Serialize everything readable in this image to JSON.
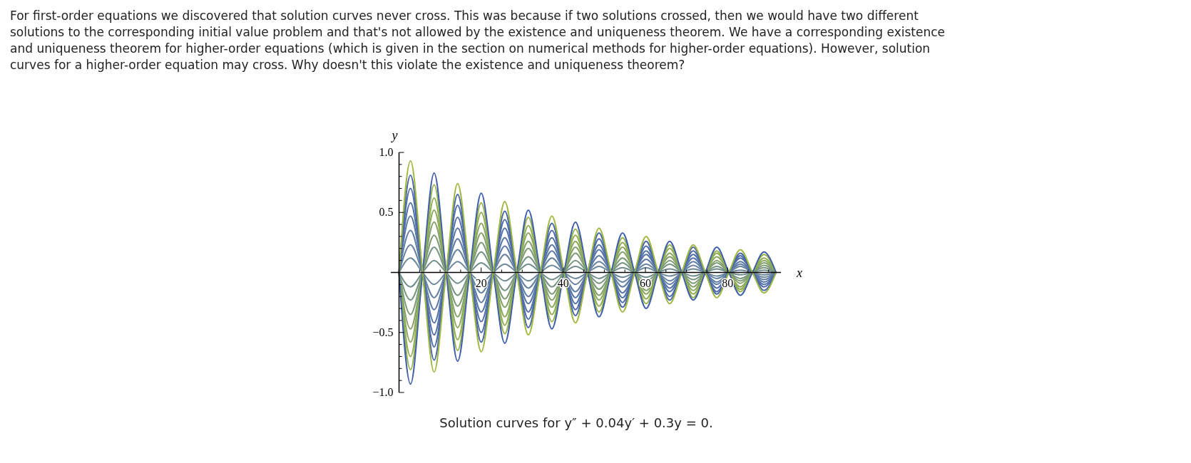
{
  "chart_data": {
    "type": "line",
    "title": "For first-order equations we discovered that solution curves never cross. This was because if two solutions crossed, then we would have two different solutions to the corresponding initial value problem and that's not allowed by the existence and uniqueness theorem. We have a corresponding existence and uniqueness theorem for higher-order equations (which is given in the section on numerical methods for higher-order equations). However, solution curves for a higher-order equation may cross. Why doesn't this violate the existence and uniqueness theorem?",
    "annotations": [
      "Solution curves for y″ + 0.04y′ + 0.3y = 0."
    ],
    "xlabel": "x",
    "ylabel": "y",
    "x": [
      0,
      2.8,
      5.74,
      8.54,
      11.47,
      14.27,
      17.21,
      20.01,
      22.95,
      25.75,
      28.69,
      31.49,
      34.42,
      37.22,
      40.16,
      42.96,
      45.9,
      48.7,
      51.64,
      54.43,
      57.37,
      60.17,
      63.11,
      65.91,
      68.85,
      71.65,
      74.59,
      77.38,
      80.32,
      83.12,
      86.06,
      88.86,
      91.8
    ],
    "xlim": [
      -2,
      93
    ],
    "ylim": [
      -1.0,
      1.0
    ],
    "xticks": [
      {
        "value": 5,
        "label": null
      },
      {
        "value": 10,
        "label": null
      },
      {
        "value": 15,
        "label": null
      },
      20,
      {
        "value": 25,
        "label": null
      },
      {
        "value": 30,
        "label": null
      },
      {
        "value": 35,
        "label": null
      },
      40,
      {
        "value": 45,
        "label": null
      },
      {
        "value": 50,
        "label": null
      },
      {
        "value": 55,
        "label": null
      },
      60,
      {
        "value": 65,
        "label": null
      },
      {
        "value": 70,
        "label": null
      },
      {
        "value": 75,
        "label": null
      },
      80,
      {
        "value": 85,
        "label": null
      },
      {
        "value": 90,
        "label": null
      }
    ],
    "yticks": [
      {
        "value": -1.0,
        "label": "−1.0"
      },
      {
        "value": -0.9,
        "label": null
      },
      {
        "value": -0.8,
        "label": null
      },
      {
        "value": -0.7,
        "label": null
      },
      {
        "value": -0.6,
        "label": null
      },
      {
        "value": -0.5,
        "label": "−0.5"
      },
      {
        "value": -0.4,
        "label": null
      },
      {
        "value": -0.3,
        "label": null
      },
      {
        "value": -0.2,
        "label": null
      },
      {
        "value": -0.1,
        "label": null
      },
      {
        "value": 0.1,
        "label": null
      },
      {
        "value": 0.2,
        "label": null
      },
      {
        "value": 0.3,
        "label": null
      },
      {
        "value": 0.4,
        "label": null
      },
      {
        "value": 0.5,
        "label": "0.5"
      },
      {
        "value": 0.6,
        "label": null
      },
      {
        "value": 0.7,
        "label": null
      },
      {
        "value": 0.8,
        "label": null
      },
      {
        "value": 0.9,
        "label": null
      },
      {
        "value": 1.0,
        "label": "1.0"
      }
    ],
    "grid": false,
    "marker": "none",
    "line_style": "solid",
    "series": [
      {
        "color": "#6b889a",
        "values": [
          0,
          0.12,
          0,
          -0.1,
          0,
          0.09,
          0,
          -0.08,
          0,
          0.07,
          0,
          -0.07,
          0,
          0.06,
          0,
          -0.05,
          0,
          0.05,
          0,
          -0.04,
          0,
          0.04,
          0,
          -0.03,
          0,
          0.03,
          0,
          -0.03,
          0,
          0.02,
          0,
          -0.02,
          0
        ]
      },
      {
        "color": "#6f8d8a",
        "values": [
          0,
          -0.12,
          0,
          0.1,
          0,
          -0.09,
          0,
          0.08,
          0,
          -0.07,
          0,
          0.07,
          0,
          -0.06,
          0,
          0.05,
          0,
          -0.05,
          0,
          0.04,
          0,
          -0.04,
          0,
          0.03,
          0,
          -0.03,
          0,
          0.03,
          0,
          -0.02,
          0,
          0.02,
          0
        ]
      },
      {
        "color": "#65829f",
        "values": [
          0,
          0.23,
          0,
          -0.21,
          0,
          0.19,
          0,
          -0.17,
          0,
          0.15,
          0,
          -0.13,
          0,
          0.12,
          0,
          -0.1,
          0,
          0.09,
          0,
          -0.08,
          0,
          0.07,
          0,
          -0.07,
          0,
          0.06,
          0,
          -0.05,
          0,
          0.05,
          0,
          -0.04,
          0
        ]
      },
      {
        "color": "#769480",
        "values": [
          0,
          -0.23,
          0,
          0.21,
          0,
          -0.19,
          0,
          0.17,
          0,
          -0.15,
          0,
          0.13,
          0,
          -0.12,
          0,
          0.1,
          0,
          -0.09,
          0,
          0.08,
          0,
          -0.07,
          0,
          0.07,
          0,
          -0.06,
          0,
          0.05,
          0,
          -0.05,
          0,
          0.04,
          0
        ]
      },
      {
        "color": "#5f7ca4",
        "values": [
          0,
          0.35,
          0,
          -0.31,
          0,
          0.28,
          0,
          -0.25,
          0,
          0.22,
          0,
          -0.2,
          0,
          0.18,
          0,
          -0.16,
          0,
          0.14,
          0,
          -0.12,
          0,
          0.11,
          0,
          -0.1,
          0,
          0.09,
          0,
          -0.08,
          0,
          0.07,
          0,
          -0.06,
          0
        ]
      },
      {
        "color": "#7d9b75",
        "values": [
          0,
          -0.35,
          0,
          0.31,
          0,
          -0.28,
          0,
          0.25,
          0,
          -0.22,
          0,
          0.2,
          0,
          -0.18,
          0,
          0.16,
          0,
          -0.14,
          0,
          0.12,
          0,
          -0.11,
          0,
          0.1,
          0,
          -0.09,
          0,
          0.08,
          0,
          -0.07,
          0,
          0.06,
          0
        ]
      },
      {
        "color": "#5976a7",
        "values": [
          0,
          0.47,
          0,
          -0.42,
          0,
          0.37,
          0,
          -0.33,
          0,
          0.29,
          0,
          -0.26,
          0,
          0.23,
          0,
          -0.21,
          0,
          0.19,
          0,
          -0.17,
          0,
          0.15,
          0,
          -0.13,
          0,
          0.12,
          0,
          -0.1,
          0,
          0.09,
          0,
          -0.08,
          0
        ]
      },
      {
        "color": "#84a16a",
        "values": [
          0,
          -0.47,
          0,
          0.42,
          0,
          -0.37,
          0,
          0.33,
          0,
          -0.29,
          0,
          0.26,
          0,
          -0.23,
          0,
          0.21,
          0,
          -0.19,
          0,
          0.17,
          0,
          -0.15,
          0,
          0.13,
          0,
          -0.12,
          0,
          0.1,
          0,
          -0.09,
          0,
          0.08,
          0
        ]
      },
      {
        "color": "#5370a9",
        "values": [
          0,
          0.58,
          0,
          -0.52,
          0,
          0.46,
          0,
          -0.41,
          0,
          0.37,
          0,
          -0.33,
          0,
          0.29,
          0,
          -0.26,
          0,
          0.23,
          0,
          -0.21,
          0,
          0.18,
          0,
          -0.16,
          0,
          0.15,
          0,
          -0.13,
          0,
          0.12,
          0,
          -0.1,
          0
        ]
      },
      {
        "color": "#8ba85f",
        "values": [
          0,
          -0.58,
          0,
          0.52,
          0,
          -0.46,
          0,
          0.41,
          0,
          -0.37,
          0,
          0.33,
          0,
          -0.29,
          0,
          0.26,
          0,
          -0.23,
          0,
          0.21,
          0,
          -0.18,
          0,
          0.16,
          0,
          -0.15,
          0,
          0.13,
          0,
          -0.12,
          0,
          0.1,
          0
        ]
      },
      {
        "color": "#4d6aaa",
        "values": [
          0,
          0.7,
          0,
          -0.62,
          0,
          0.56,
          0,
          -0.5,
          0,
          0.44,
          0,
          -0.39,
          0,
          0.35,
          0,
          -0.31,
          0,
          0.28,
          0,
          -0.25,
          0,
          0.22,
          0,
          -0.2,
          0,
          0.18,
          0,
          -0.16,
          0,
          0.14,
          0,
          -0.12,
          0
        ]
      },
      {
        "color": "#92ae54",
        "values": [
          0,
          -0.7,
          0,
          0.62,
          0,
          -0.56,
          0,
          0.5,
          0,
          -0.44,
          0,
          0.39,
          0,
          -0.35,
          0,
          0.31,
          0,
          -0.28,
          0,
          0.25,
          0,
          -0.22,
          0,
          0.2,
          0,
          -0.18,
          0,
          0.16,
          0,
          -0.14,
          0,
          0.12,
          0
        ]
      },
      {
        "color": "#4765ab",
        "values": [
          0,
          0.81,
          0,
          -0.73,
          0,
          0.65,
          0,
          -0.58,
          0,
          0.51,
          0,
          -0.46,
          0,
          0.41,
          0,
          -0.36,
          0,
          0.33,
          0,
          -0.29,
          0,
          0.26,
          0,
          -0.23,
          0,
          0.21,
          0,
          -0.18,
          0,
          0.16,
          0,
          -0.15,
          0
        ]
      },
      {
        "color": "#99b44a",
        "values": [
          0,
          -0.81,
          0,
          0.73,
          0,
          -0.65,
          0,
          0.58,
          0,
          -0.51,
          0,
          0.46,
          0,
          -0.41,
          0,
          0.36,
          0,
          -0.33,
          0,
          0.29,
          0,
          -0.26,
          0,
          0.23,
          0,
          -0.21,
          0,
          0.18,
          0,
          -0.16,
          0,
          0.15,
          0
        ]
      },
      {
        "color": "#4160ac",
        "values": [
          0,
          -0.93,
          0,
          0.83,
          0,
          -0.74,
          0,
          0.66,
          0,
          -0.59,
          0,
          0.52,
          0,
          -0.47,
          0,
          0.42,
          0,
          -0.37,
          0,
          0.33,
          0,
          -0.3,
          0,
          0.26,
          0,
          -0.23,
          0,
          0.21,
          0,
          -0.19,
          0,
          0.17,
          0
        ]
      },
      {
        "color": "#a0b940",
        "values": [
          0,
          0.93,
          0,
          -0.83,
          0,
          0.74,
          0,
          -0.66,
          0,
          0.59,
          0,
          -0.52,
          0,
          0.47,
          0,
          -0.42,
          0,
          0.37,
          0,
          -0.33,
          0,
          0.3,
          0,
          -0.26,
          0,
          0.23,
          0,
          -0.21,
          0,
          0.19,
          0,
          -0.17,
          0
        ]
      }
    ]
  }
}
